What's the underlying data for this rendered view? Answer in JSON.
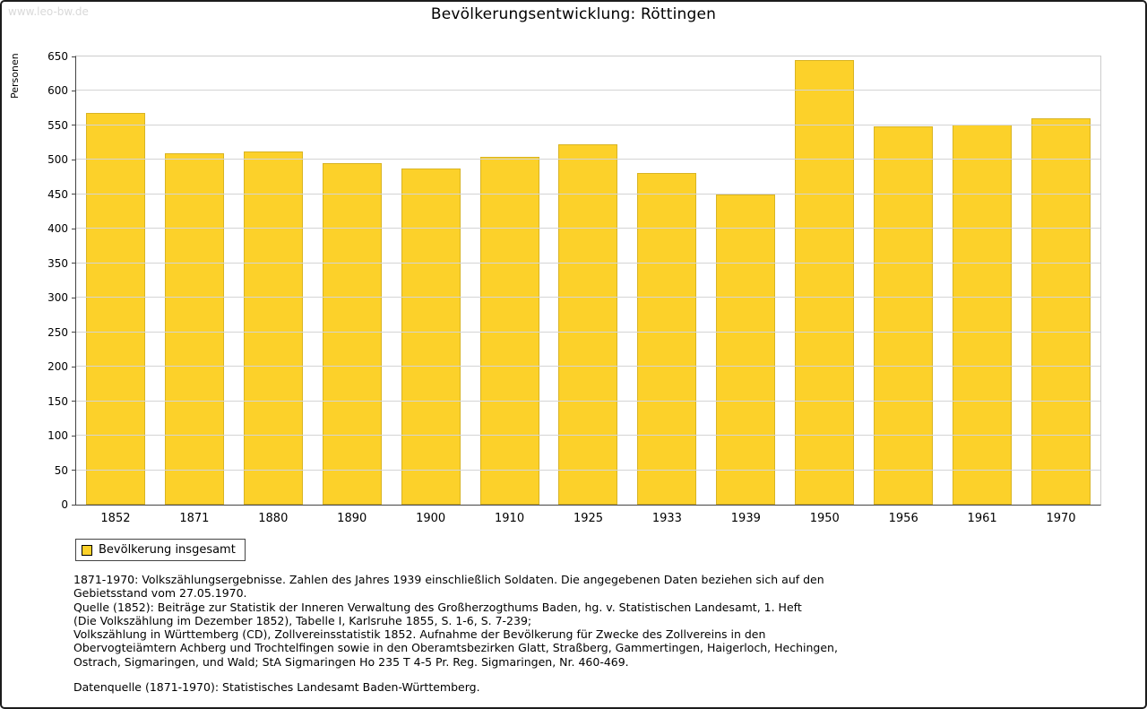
{
  "page": {
    "watermark": "www.leo-bw.de",
    "title": "Bevölkerungsentwicklung: Röttingen"
  },
  "chart_data": {
    "type": "bar",
    "title": "Bevölkerungsentwicklung: Röttingen",
    "xlabel": "",
    "ylabel": "Personen",
    "categories": [
      "1852",
      "1871",
      "1880",
      "1890",
      "1900",
      "1910",
      "1925",
      "1933",
      "1939",
      "1950",
      "1956",
      "1961",
      "1970"
    ],
    "values": [
      568,
      509,
      512,
      495,
      488,
      505,
      522,
      481,
      450,
      645,
      549,
      551,
      560
    ],
    "ylim": [
      0,
      650
    ],
    "ytick_step": 50,
    "grid": true,
    "bar_color": "#FCD12A",
    "bar_border_color": "#d8b424",
    "legend": {
      "label": "Bevölkerung insgesamt",
      "position": "bottom-left"
    }
  },
  "footnotes": {
    "para1": [
      "1871-1970: Volkszählungsergebnisse. Zahlen des Jahres 1939 einschließlich Soldaten. Die angegebenen Daten beziehen sich auf den",
      "Gebietsstand vom 27.05.1970.",
      "Quelle (1852): Beiträge zur Statistik der Inneren Verwaltung des Großherzogthums Baden, hg. v. Statistischen Landesamt, 1. Heft",
      "(Die Volkszählung im Dezember 1852), Tabelle I, Karlsruhe 1855, S. 1-6, S. 7-239;",
      "Volkszählung in Württemberg (CD), Zollvereinsstatistik 1852. Aufnahme der Bevölkerung für Zwecke des Zollvereins in den",
      "Obervogteiämtern Achberg und Trochtelfingen sowie in den Oberamtsbezirken Glatt, Straßberg, Gammertingen, Haigerloch, Hechingen,",
      "Ostrach, Sigmaringen, und Wald; StA Sigmaringen Ho 235 T 4-5 Pr. Reg. Sigmaringen, Nr. 460-469."
    ],
    "para2": "Datenquelle (1871-1970): Statistisches Landesamt Baden-Württemberg."
  }
}
